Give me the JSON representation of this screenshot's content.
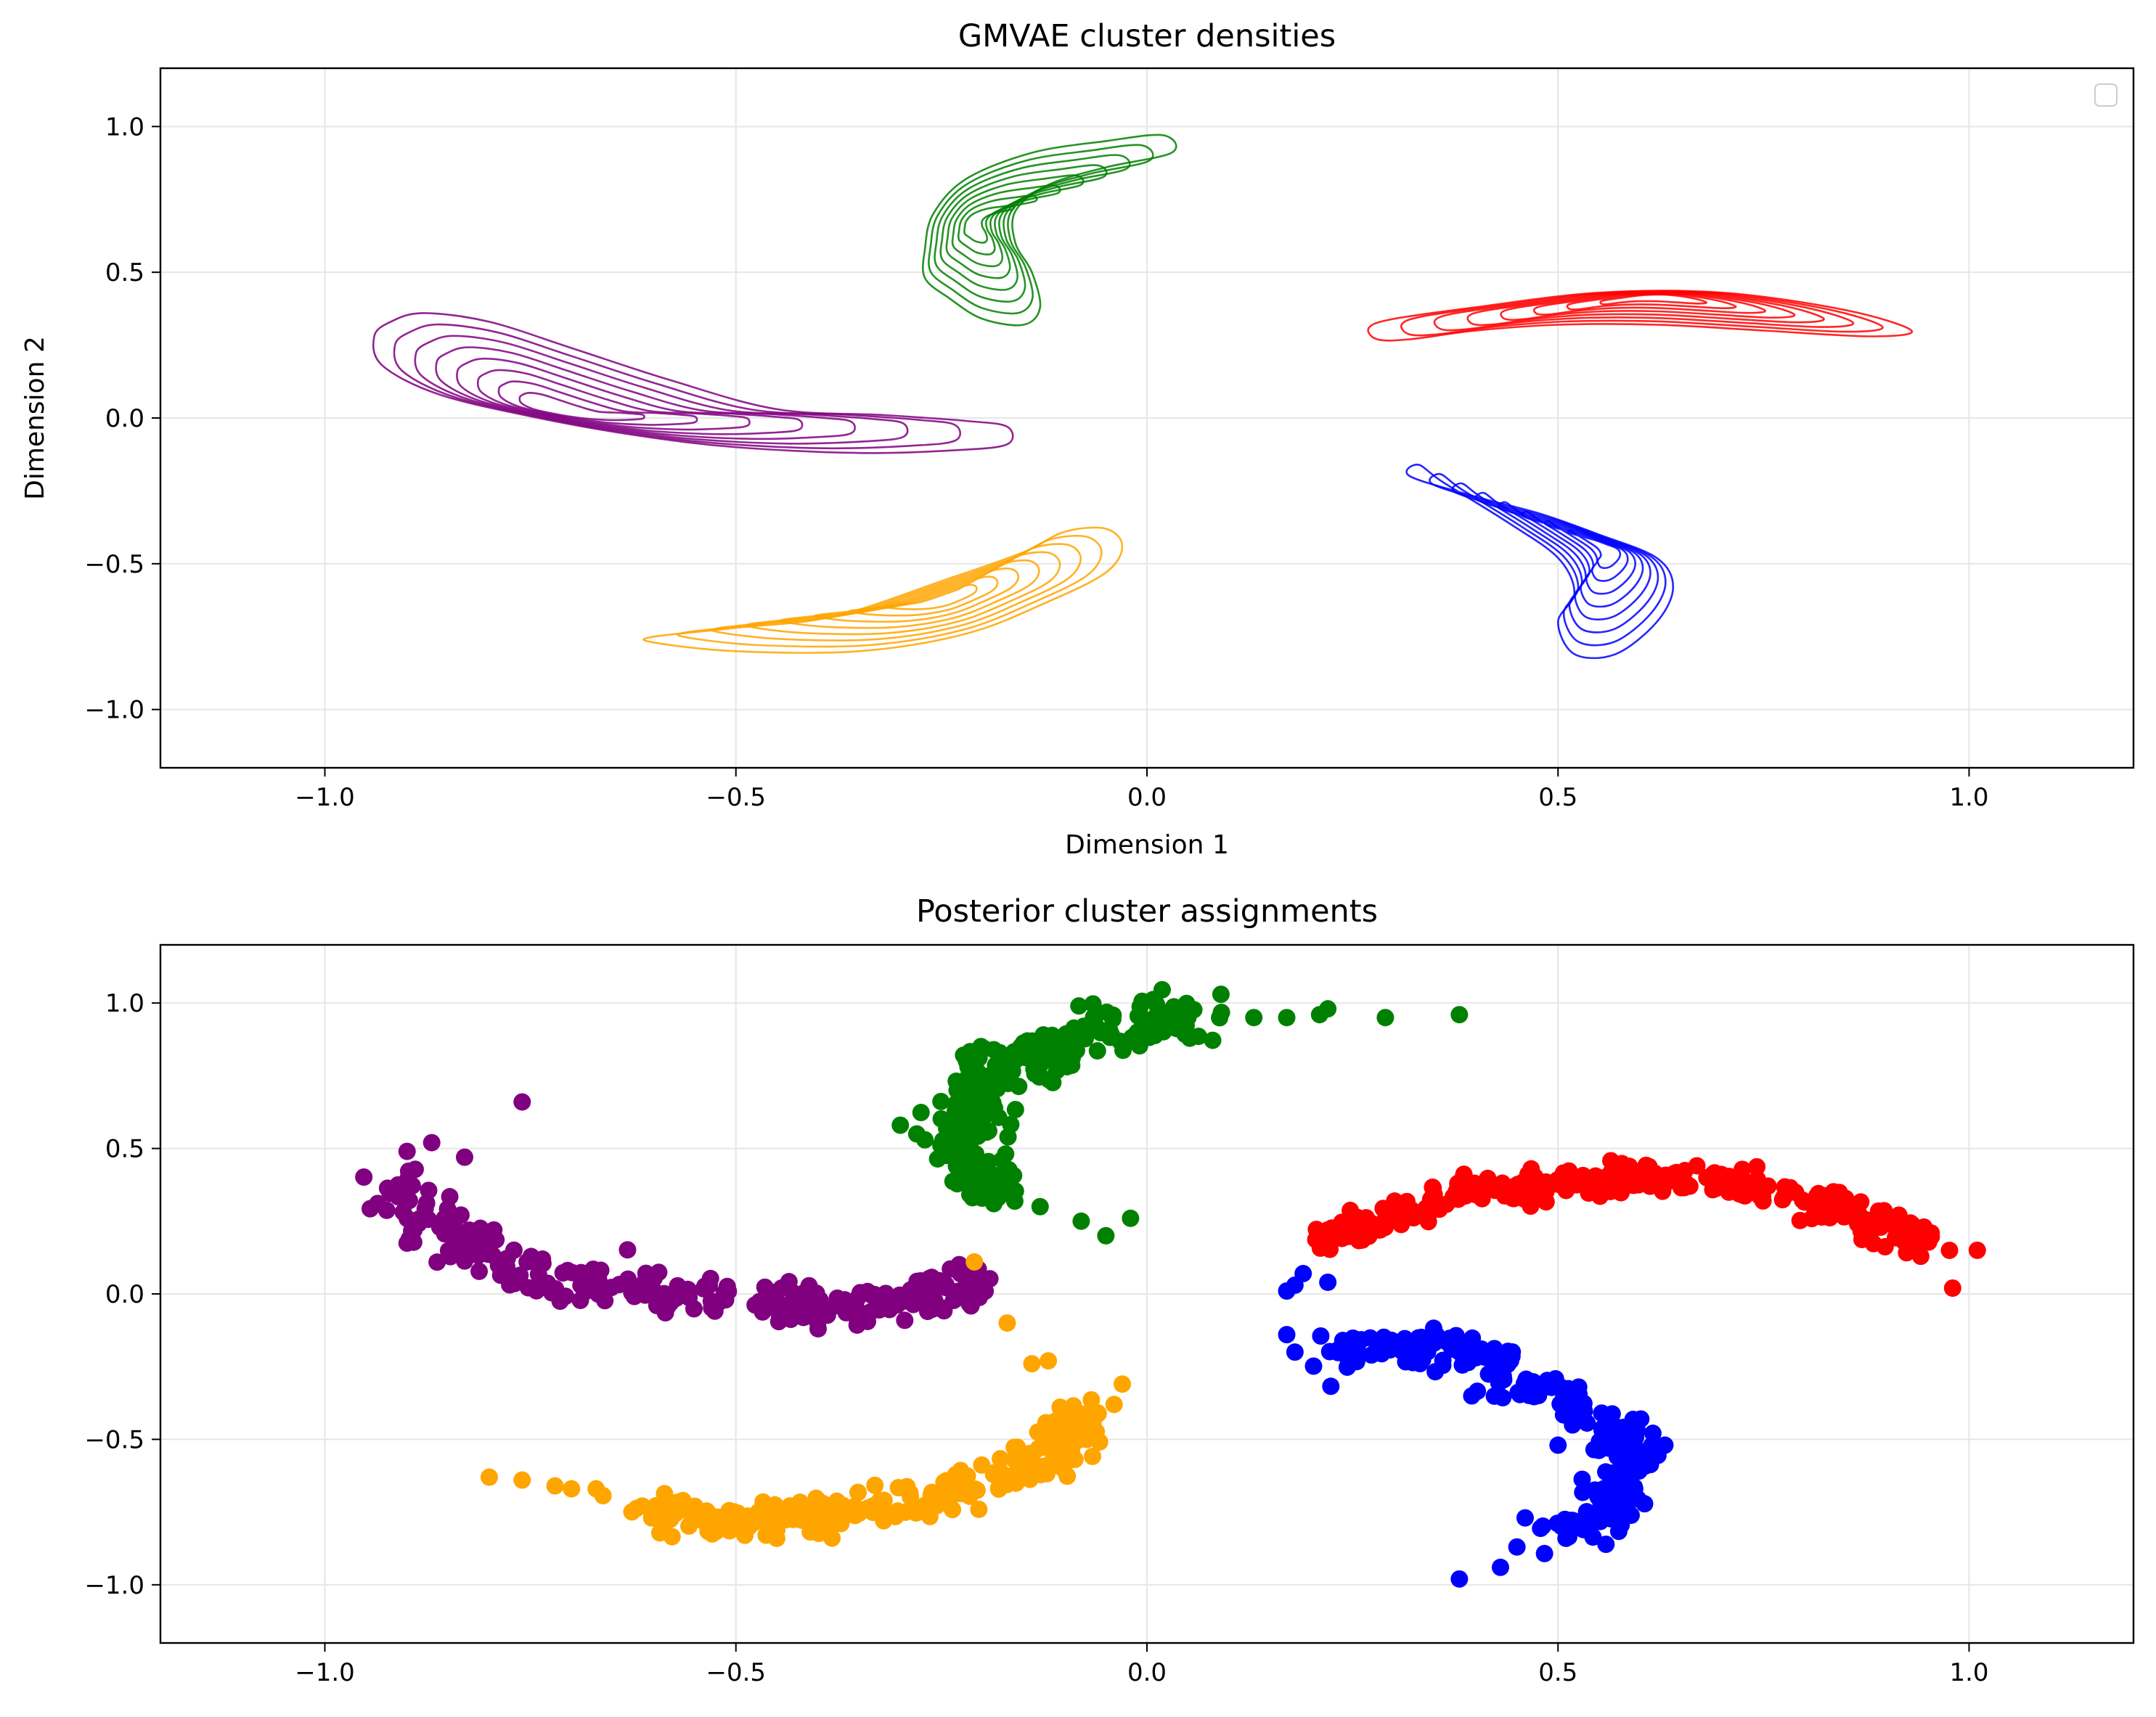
{
  "chart_data": [
    {
      "type": "contour",
      "title": "GMVAE cluster densities",
      "xlabel": "Dimension 1",
      "ylabel": "Dimension 2",
      "xlim": [
        -1.2,
        1.2
      ],
      "ylim": [
        -1.2,
        1.2
      ],
      "xticks": [
        "−1.0",
        "−0.5",
        "0.0",
        "0.5",
        "1.0"
      ],
      "yticks": [
        "1.0",
        "0.5",
        "0.0",
        "−0.5",
        "−1.0"
      ],
      "grid": true,
      "legend": "top-right (empty)",
      "series": [
        {
          "color": "#800080",
          "levels": 8,
          "centroid": [
            -0.72,
            0.02
          ],
          "path": [
            [
              -0.94,
              0.28
            ],
            [
              -0.92,
              0.33
            ],
            [
              -0.88,
              0.36
            ],
            [
              -0.8,
              0.33
            ],
            [
              -0.7,
              0.24
            ],
            [
              -0.58,
              0.13
            ],
            [
              -0.45,
              0.03
            ],
            [
              -0.32,
              0.01
            ],
            [
              -0.22,
              -0.01
            ],
            [
              -0.17,
              -0.03
            ],
            [
              -0.17,
              -0.09
            ],
            [
              -0.23,
              -0.11
            ],
            [
              -0.35,
              -0.12
            ],
            [
              -0.5,
              -0.1
            ],
            [
              -0.62,
              -0.06
            ],
            [
              -0.74,
              0.0
            ],
            [
              -0.86,
              0.08
            ],
            [
              -0.93,
              0.18
            ]
          ]
        },
        {
          "color": "#008000",
          "levels": 8,
          "centroid": [
            -0.21,
            0.67
          ],
          "path": [
            [
              -0.27,
              0.48
            ],
            [
              -0.27,
              0.58
            ],
            [
              -0.26,
              0.7
            ],
            [
              -0.22,
              0.82
            ],
            [
              -0.14,
              0.91
            ],
            [
              -0.05,
              0.95
            ],
            [
              0.02,
              0.97
            ],
            [
              0.03,
              0.91
            ],
            [
              -0.05,
              0.86
            ],
            [
              -0.12,
              0.8
            ],
            [
              -0.16,
              0.71
            ],
            [
              -0.16,
              0.6
            ],
            [
              -0.14,
              0.5
            ],
            [
              -0.13,
              0.38
            ],
            [
              -0.15,
              0.32
            ],
            [
              -0.2,
              0.34
            ],
            [
              -0.24,
              0.41
            ]
          ]
        },
        {
          "color": "#ff0000",
          "levels": 8,
          "centroid": [
            0.62,
            0.42
          ],
          "path": [
            [
              0.27,
              0.31
            ],
            [
              0.3,
              0.34
            ],
            [
              0.4,
              0.38
            ],
            [
              0.55,
              0.43
            ],
            [
              0.7,
              0.43
            ],
            [
              0.85,
              0.37
            ],
            [
              0.93,
              0.3
            ],
            [
              0.88,
              0.28
            ],
            [
              0.75,
              0.3
            ],
            [
              0.62,
              0.32
            ],
            [
              0.5,
              0.32
            ],
            [
              0.4,
              0.3
            ],
            [
              0.32,
              0.27
            ],
            [
              0.28,
              0.27
            ]
          ]
        },
        {
          "color": "#0000ff",
          "levels": 8,
          "centroid": [
            0.56,
            -0.44
          ],
          "path": [
            [
              0.33,
              -0.16
            ],
            [
              0.32,
              -0.2
            ],
            [
              0.4,
              -0.27
            ],
            [
              0.48,
              -0.33
            ],
            [
              0.55,
              -0.4
            ],
            [
              0.62,
              -0.48
            ],
            [
              0.64,
              -0.58
            ],
            [
              0.62,
              -0.7
            ],
            [
              0.57,
              -0.81
            ],
            [
              0.52,
              -0.81
            ],
            [
              0.5,
              -0.7
            ],
            [
              0.52,
              -0.6
            ],
            [
              0.5,
              -0.48
            ],
            [
              0.44,
              -0.36
            ],
            [
              0.36,
              -0.22
            ]
          ]
        },
        {
          "color": "#ffa500",
          "levels": 8,
          "centroid": [
            -0.25,
            -0.62
          ],
          "path": [
            [
              -0.6,
              -0.75
            ],
            [
              -0.6,
              -0.77
            ],
            [
              -0.5,
              -0.8
            ],
            [
              -0.35,
              -0.8
            ],
            [
              -0.22,
              -0.74
            ],
            [
              -0.12,
              -0.63
            ],
            [
              -0.05,
              -0.53
            ],
            [
              -0.03,
              -0.44
            ],
            [
              -0.05,
              -0.38
            ],
            [
              -0.1,
              -0.39
            ],
            [
              -0.15,
              -0.46
            ],
            [
              -0.24,
              -0.55
            ],
            [
              -0.38,
              -0.68
            ],
            [
              -0.5,
              -0.72
            ]
          ]
        }
      ]
    },
    {
      "type": "scatter",
      "title": "Posterior cluster assignments",
      "xlabel": "",
      "ylabel": "",
      "xlim": [
        -1.2,
        1.2
      ],
      "ylim": [
        -1.2,
        1.2
      ],
      "xticks": [
        "−1.0",
        "−0.5",
        "0.0",
        "0.5",
        "1.0"
      ],
      "yticks": [
        "1.0",
        "0.5",
        "0.0",
        "−0.5",
        "−1.0"
      ],
      "grid": true,
      "series": [
        {
          "color": "#800080",
          "curve": [
            [
              -0.92,
              0.38
            ],
            [
              -0.88,
              0.28
            ],
            [
              -0.84,
              0.18
            ],
            [
              -0.78,
              0.1
            ],
            [
              -0.7,
              0.04
            ],
            [
              -0.6,
              0.01
            ],
            [
              -0.5,
              -0.02
            ],
            [
              -0.4,
              -0.04
            ],
            [
              -0.3,
              -0.03
            ],
            [
              -0.24,
              0.01
            ],
            [
              -0.2,
              0.05
            ]
          ],
          "spread": 0.035,
          "count": 280,
          "outliers": [
            [
              -0.76,
              0.66
            ],
            [
              -0.9,
              0.49
            ],
            [
              -0.87,
              0.52
            ],
            [
              -0.83,
              0.47
            ],
            [
              -0.21,
              0.05
            ],
            [
              -0.4,
              -0.12
            ]
          ]
        },
        {
          "color": "#008000",
          "curve": [
            [
              -0.19,
              0.33
            ],
            [
              -0.21,
              0.45
            ],
            [
              -0.22,
              0.58
            ],
            [
              -0.21,
              0.7
            ],
            [
              -0.17,
              0.8
            ],
            [
              -0.1,
              0.87
            ],
            [
              -0.02,
              0.92
            ],
            [
              0.05,
              0.96
            ]
          ],
          "spread": 0.04,
          "count": 280,
          "outliers": [
            [
              -0.3,
              0.58
            ],
            [
              -0.28,
              0.55
            ],
            [
              -0.13,
              0.3
            ],
            [
              -0.08,
              0.25
            ],
            [
              -0.05,
              0.2
            ],
            [
              -0.02,
              0.26
            ],
            [
              0.09,
              1.03
            ],
            [
              0.13,
              0.95
            ],
            [
              0.17,
              0.95
            ],
            [
              0.21,
              0.96
            ],
            [
              0.22,
              0.98
            ],
            [
              0.29,
              0.95
            ],
            [
              0.38,
              0.96
            ]
          ]
        },
        {
          "color": "#ff0000",
          "curve": [
            [
              0.21,
              0.17
            ],
            [
              0.3,
              0.28
            ],
            [
              0.4,
              0.35
            ],
            [
              0.5,
              0.38
            ],
            [
              0.6,
              0.4
            ],
            [
              0.7,
              0.39
            ],
            [
              0.8,
              0.33
            ],
            [
              0.88,
              0.25
            ],
            [
              0.95,
              0.18
            ]
          ],
          "spread": 0.028,
          "count": 280,
          "outliers": [
            [
              0.98,
              0.02
            ],
            [
              1.01,
              0.15
            ],
            [
              0.93,
              0.15
            ],
            [
              0.22,
              0.22
            ]
          ]
        },
        {
          "color": "#0000ff",
          "curve": [
            [
              0.23,
              -0.2
            ],
            [
              0.3,
              -0.18
            ],
            [
              0.38,
              -0.21
            ],
            [
              0.45,
              -0.3
            ],
            [
              0.52,
              -0.38
            ],
            [
              0.57,
              -0.46
            ],
            [
              0.59,
              -0.56
            ],
            [
              0.58,
              -0.66
            ],
            [
              0.55,
              -0.76
            ],
            [
              0.5,
              -0.83
            ]
          ],
          "spread": 0.032,
          "count": 280,
          "outliers": [
            [
              0.17,
              0.01
            ],
            [
              0.18,
              0.03
            ],
            [
              0.19,
              0.07
            ],
            [
              0.22,
              0.04
            ],
            [
              0.17,
              -0.14
            ],
            [
              0.18,
              -0.2
            ],
            [
              0.38,
              -0.98
            ],
            [
              0.43,
              -0.94
            ],
            [
              0.45,
              -0.87
            ],
            [
              0.46,
              -0.77
            ],
            [
              0.5,
              -0.52
            ],
            [
              0.63,
              -0.52
            ]
          ]
        },
        {
          "color": "#ffa500",
          "curve": [
            [
              -0.62,
              -0.74
            ],
            [
              -0.52,
              -0.77
            ],
            [
              -0.42,
              -0.77
            ],
            [
              -0.32,
              -0.74
            ],
            [
              -0.22,
              -0.68
            ],
            [
              -0.15,
              -0.6
            ],
            [
              -0.1,
              -0.5
            ],
            [
              -0.08,
              -0.38
            ]
          ],
          "spread": 0.03,
          "count": 280,
          "outliers": [
            [
              -0.8,
              -0.63
            ],
            [
              -0.76,
              -0.64
            ],
            [
              -0.72,
              -0.66
            ],
            [
              -0.7,
              -0.67
            ],
            [
              -0.67,
              -0.67
            ],
            [
              -0.17,
              -0.1
            ],
            [
              -0.14,
              -0.24
            ],
            [
              -0.12,
              -0.23
            ],
            [
              -0.03,
              -0.31
            ],
            [
              -0.04,
              -0.38
            ],
            [
              -0.21,
              0.11
            ]
          ]
        }
      ]
    }
  ]
}
